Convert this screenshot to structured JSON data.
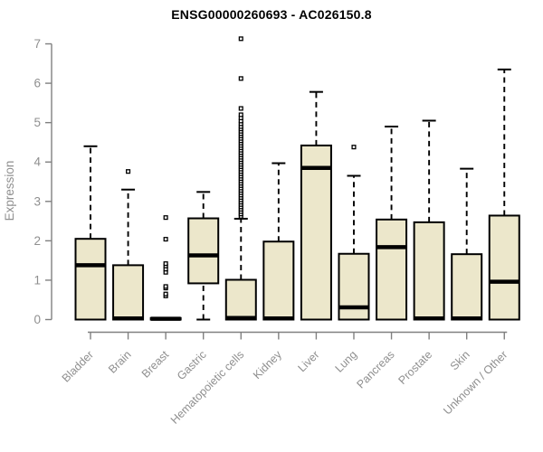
{
  "page": {
    "background": "#ffffff"
  },
  "chart_data": {
    "type": "boxplot",
    "title": "ENSG00000260693 - AC026150.8",
    "xlabel": "",
    "ylabel": "Expression",
    "ylim": [
      0,
      7
    ],
    "yticks": [
      0,
      1,
      2,
      3,
      4,
      5,
      6,
      7
    ],
    "grid": false,
    "legend": false,
    "colors": {
      "box_fill": "#ece7cb",
      "box_stroke": "#000000",
      "median_stroke": "#000000",
      "whisker_stroke": "#000000",
      "outlier_stroke": "#000000",
      "axis_color": "#808080",
      "tick_label_color": "#8f8f8f",
      "title_color": "#000000",
      "background": "#ffffff"
    },
    "categories": [
      "Bladder",
      "Brain",
      "Breast",
      "Gastric",
      "Hematopoietic cells",
      "Kidney",
      "Liver",
      "Lung",
      "Pancreas",
      "Prostate",
      "Skin",
      "Unknown / Other"
    ],
    "series": [
      {
        "category": "Bladder",
        "whisker_low": 0,
        "q1": 0,
        "median": 1.38,
        "q3": 2.05,
        "whisker_high": 4.4,
        "outliers": []
      },
      {
        "category": "Brain",
        "whisker_low": 0,
        "q1": 0,
        "median": 0.03,
        "q3": 1.38,
        "whisker_high": 3.3,
        "outliers": [
          3.76
        ]
      },
      {
        "category": "Breast",
        "whisker_low": 0,
        "q1": 0,
        "median": 0.02,
        "q3": 0.04,
        "whisker_high": 0.05,
        "outliers": [
          0.6,
          0.65,
          0.8,
          0.84,
          1.2,
          1.28,
          1.36,
          1.42,
          2.04,
          2.59
        ]
      },
      {
        "category": "Gastric",
        "whisker_low": 0,
        "q1": 0.92,
        "median": 1.63,
        "q3": 2.57,
        "whisker_high": 3.24,
        "outliers": []
      },
      {
        "category": "Hematopoietic cells",
        "whisker_low": 0,
        "q1": 0,
        "median": 0.04,
        "q3": 1.01,
        "whisker_high": 2.56,
        "outliers": [
          2.62,
          2.68,
          2.74,
          2.8,
          2.86,
          2.92,
          2.98,
          3.04,
          3.1,
          3.16,
          3.22,
          3.28,
          3.34,
          3.4,
          3.46,
          3.52,
          3.58,
          3.64,
          3.7,
          3.76,
          3.82,
          3.88,
          3.94,
          4.0,
          4.06,
          4.12,
          4.18,
          4.24,
          4.3,
          4.36,
          4.42,
          4.48,
          4.54,
          4.6,
          4.66,
          4.72,
          4.78,
          4.84,
          4.9,
          4.97,
          5.04,
          5.12,
          5.2,
          5.36,
          6.12,
          7.13
        ]
      },
      {
        "category": "Kidney",
        "whisker_low": 0,
        "q1": 0,
        "median": 0.03,
        "q3": 1.98,
        "whisker_high": 3.97,
        "outliers": []
      },
      {
        "category": "Liver",
        "whisker_low": 0,
        "q1": 0,
        "median": 3.85,
        "q3": 4.42,
        "whisker_high": 5.78,
        "outliers": []
      },
      {
        "category": "Lung",
        "whisker_low": 0,
        "q1": 0,
        "median": 0.31,
        "q3": 1.67,
        "whisker_high": 3.65,
        "outliers": [
          4.38
        ]
      },
      {
        "category": "Pancreas",
        "whisker_low": 0,
        "q1": 0,
        "median": 1.84,
        "q3": 2.54,
        "whisker_high": 4.9,
        "outliers": []
      },
      {
        "category": "Prostate",
        "whisker_low": 0,
        "q1": 0,
        "median": 0.03,
        "q3": 2.47,
        "whisker_high": 5.05,
        "outliers": []
      },
      {
        "category": "Skin",
        "whisker_low": 0,
        "q1": 0,
        "median": 0.03,
        "q3": 1.66,
        "whisker_high": 3.83,
        "outliers": []
      },
      {
        "category": "Unknown / Other",
        "whisker_low": 0,
        "q1": 0,
        "median": 0.96,
        "q3": 2.64,
        "whisker_high": 6.35,
        "outliers": []
      }
    ]
  }
}
